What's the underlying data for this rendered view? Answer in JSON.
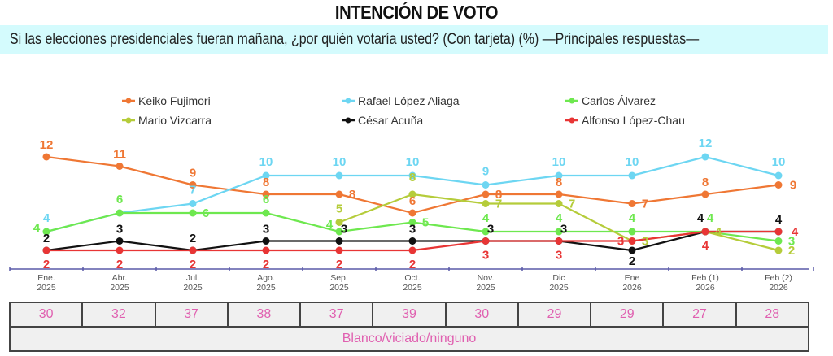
{
  "header": {
    "title": "INTENCIÓN DE VOTO",
    "subtitle": "Si las elecciones presidenciales fueran mañana, ¿por quién votaría usted? (Con tarjeta) (%) —Principales respuestas—"
  },
  "chart_data": {
    "type": "line",
    "title": "INTENCIÓN DE VOTO",
    "subtitle": "Si las elecciones presidenciales fueran mañana, ¿por quién votaría usted? (Con tarjeta) (%) —Principales respuestas—",
    "xlabel": "",
    "ylabel": "%",
    "ylim": [
      0,
      13
    ],
    "grid": false,
    "legend_position": "top",
    "categories": [
      [
        "Ene.",
        "2025"
      ],
      [
        "Abr.",
        "2025"
      ],
      [
        "Jul.",
        "2025"
      ],
      [
        "Ago.",
        "2025"
      ],
      [
        "Sep.",
        "2025"
      ],
      [
        "Oct.",
        "2025"
      ],
      [
        "Nov.",
        "2025"
      ],
      [
        "Dic",
        "2025"
      ],
      [
        "Ene",
        "2026"
      ],
      [
        "Feb (1)",
        "2026"
      ],
      [
        "Feb (2)",
        "2026"
      ]
    ],
    "series": [
      {
        "name": "Keiko Fujimori",
        "color": "#ef7734",
        "values": [
          12,
          11,
          9,
          8,
          8,
          6,
          8,
          8,
          7,
          8,
          9
        ]
      },
      {
        "name": "Rafael López Aliaga",
        "color": "#6dd6f2",
        "values": [
          4,
          6,
          7,
          10,
          10,
          10,
          9,
          10,
          10,
          12,
          10
        ],
        "hidden_labels": [
          1
        ]
      },
      {
        "name": "Carlos Álvarez",
        "color": "#6ee84f",
        "values": [
          4,
          6,
          6,
          6,
          4,
          5,
          4,
          4,
          4,
          4,
          3
        ]
      },
      {
        "name": "Mario Vizcarra",
        "color": "#b5cc3a",
        "values": [
          null,
          null,
          null,
          null,
          5,
          8,
          7,
          7,
          3,
          4,
          2
        ]
      },
      {
        "name": "César Acuña",
        "color": "#111111",
        "values": [
          2,
          3,
          2,
          3,
          3,
          3,
          3,
          3,
          2,
          4,
          4
        ]
      },
      {
        "name": "Alfonso López-Chau",
        "color": "#e83535",
        "values": [
          2,
          2,
          2,
          2,
          2,
          2,
          3,
          3,
          3,
          4,
          4
        ]
      }
    ],
    "table": {
      "label": "Blanco/viciado/ninguno",
      "values": [
        30,
        32,
        37,
        38,
        37,
        39,
        30,
        29,
        29,
        27,
        28
      ]
    }
  }
}
